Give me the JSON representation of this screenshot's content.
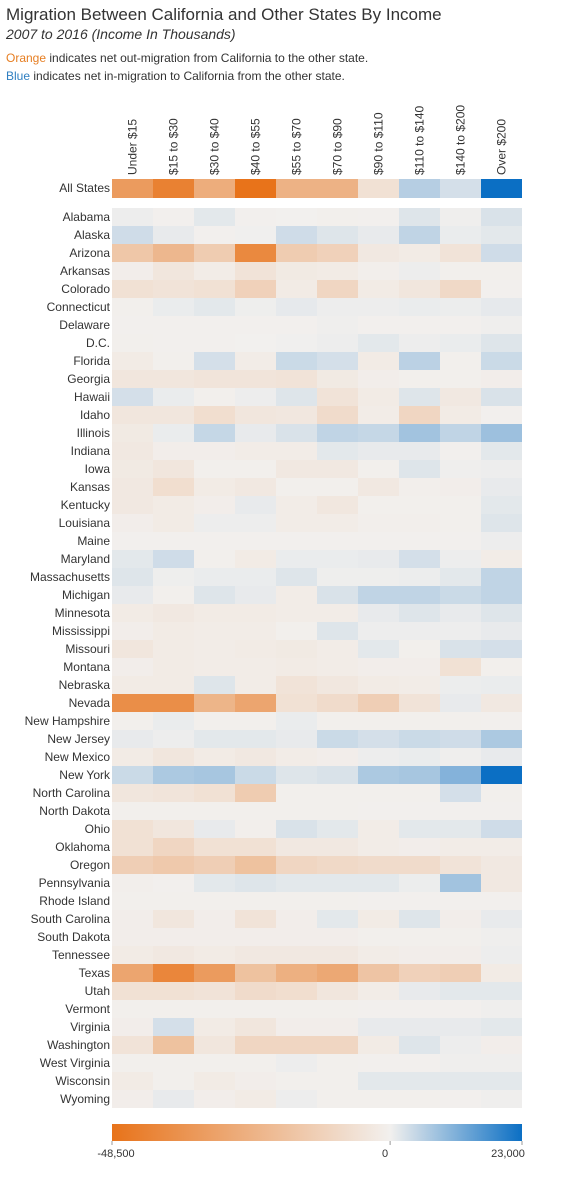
{
  "title": "Migration Between California and Other States By Income",
  "subtitle": "2007 to 2016 (Income In Thousands)",
  "notes": {
    "orange_word": "Orange",
    "orange_rest": " indicates net out-migration from California to the other state.",
    "blue_word": "Blue",
    "blue_rest": " indicates net in-migration to California from the other state."
  },
  "colors": {
    "orange": "#e8731a",
    "blue": "#0b6fc4",
    "neutral": "#f2f0ee",
    "orange_text": "#e67e22",
    "blue_text": "#2f7fc1"
  },
  "chart_data": {
    "type": "heatmap",
    "columns": [
      "Under $15",
      "$15 to $30",
      "$30 to $40",
      "$40 to $55",
      "$55 to $70",
      "$70 to $90",
      "$90 to $110",
      "$110 to $140",
      "$140 to $200",
      "Over $200"
    ],
    "summary_row": {
      "label": "All States",
      "values": [
        -33000,
        -43000,
        -26000,
        -48500,
        -24000,
        -24000,
        -6000,
        6000,
        3000,
        23000
      ]
    },
    "rows": [
      {
        "label": "Alabama",
        "values": [
          500,
          -300,
          1500,
          -300,
          0,
          -500,
          -300,
          2000,
          300,
          2500
        ]
      },
      {
        "label": "Alaska",
        "values": [
          3500,
          1000,
          -300,
          200,
          3500,
          2000,
          1000,
          5000,
          800,
          1500
        ]
      },
      {
        "label": "Arizona",
        "values": [
          -16000,
          -22000,
          -14000,
          -40000,
          -14000,
          -12000,
          -3000,
          -2000,
          -5000,
          3500
        ]
      },
      {
        "label": "Arkansas",
        "values": [
          -1000,
          -4000,
          -1500,
          -5000,
          -2500,
          -2000,
          -800,
          500,
          -500,
          -500
        ]
      },
      {
        "label": "Colorado",
        "values": [
          -6000,
          -5000,
          -6000,
          -12000,
          -2000,
          -10000,
          -2000,
          -4000,
          -9000,
          -300
        ]
      },
      {
        "label": "Connecticut",
        "values": [
          -500,
          800,
          1500,
          400,
          1200,
          500,
          500,
          800,
          600,
          1200
        ]
      },
      {
        "label": "Delaware",
        "values": [
          -300,
          -300,
          -200,
          -300,
          -200,
          300,
          -300,
          -200,
          -200,
          300
        ]
      },
      {
        "label": "D.C.",
        "values": [
          -500,
          -300,
          -200,
          0,
          200,
          500,
          1500,
          500,
          800,
          2000
        ]
      },
      {
        "label": "Florida",
        "values": [
          -2000,
          -500,
          3000,
          -1500,
          4000,
          3000,
          -2000,
          5500,
          -500,
          4000
        ]
      },
      {
        "label": "Georgia",
        "values": [
          -4000,
          -4000,
          -4500,
          -4500,
          -5000,
          -2500,
          -1000,
          -500,
          -500,
          -1000
        ]
      },
      {
        "label": "Hawaii",
        "values": [
          3000,
          800,
          -500,
          500,
          2000,
          -5000,
          -2000,
          2000,
          -3000,
          2500
        ]
      },
      {
        "label": "Idaho",
        "values": [
          -4000,
          -4000,
          -7000,
          -4000,
          -3500,
          -8000,
          -1500,
          -10000,
          -2000,
          -200
        ]
      },
      {
        "label": "Illinois",
        "values": [
          -2500,
          800,
          4500,
          1000,
          2500,
          5000,
          4500,
          8000,
          5000,
          8500
        ]
      },
      {
        "label": "Indiana",
        "values": [
          -3000,
          -1000,
          -1000,
          -1500,
          -1500,
          1500,
          1000,
          1000,
          -300,
          1500
        ]
      },
      {
        "label": "Iowa",
        "values": [
          -2500,
          -4000,
          -500,
          -500,
          -3000,
          -3000,
          -500,
          2000,
          300,
          500
        ]
      },
      {
        "label": "Kansas",
        "values": [
          -3000,
          -7000,
          -2000,
          -3000,
          -500,
          -500,
          -3000,
          -800,
          -1000,
          1000
        ]
      },
      {
        "label": "Kentucky",
        "values": [
          -3000,
          -2000,
          -1000,
          1000,
          -1500,
          -3500,
          -500,
          -500,
          -500,
          1500
        ]
      },
      {
        "label": "Louisiana",
        "values": [
          -1000,
          -2000,
          500,
          500,
          -1500,
          -1500,
          -800,
          -800,
          -500,
          2000
        ]
      },
      {
        "label": "Maine",
        "values": [
          -300,
          -300,
          -300,
          -300,
          -300,
          -300,
          -300,
          -300,
          -300,
          500
        ]
      },
      {
        "label": "Maryland",
        "values": [
          1500,
          3500,
          -500,
          -2000,
          800,
          800,
          1000,
          3000,
          500,
          -1500
        ]
      },
      {
        "label": "Massachusetts",
        "values": [
          2000,
          400,
          800,
          800,
          2000,
          400,
          400,
          600,
          1500,
          5000
        ]
      },
      {
        "label": "Michigan",
        "values": [
          1000,
          -500,
          2000,
          1000,
          -1500,
          2500,
          5000,
          5000,
          4000,
          5000
        ]
      },
      {
        "label": "Minnesota",
        "values": [
          -2000,
          -3000,
          -2000,
          -2000,
          -1500,
          -1500,
          1000,
          2000,
          1000,
          2000
        ]
      },
      {
        "label": "Mississippi",
        "values": [
          -1000,
          -2000,
          -1500,
          -1500,
          -500,
          2000,
          500,
          500,
          500,
          1000
        ]
      },
      {
        "label": "Missouri",
        "values": [
          -4000,
          -2000,
          -1500,
          -2000,
          -2500,
          -1500,
          1500,
          -500,
          2500,
          3000
        ]
      },
      {
        "label": "Montana",
        "values": [
          -1000,
          -2000,
          -1500,
          -1500,
          -2000,
          -1500,
          -1000,
          -1000,
          -6000,
          -500
        ]
      },
      {
        "label": "Nebraska",
        "values": [
          -2000,
          -2000,
          2000,
          -1500,
          -5000,
          -3500,
          -2000,
          -1500,
          600,
          800
        ]
      },
      {
        "label": "Nevada",
        "values": [
          -38000,
          -38000,
          -23000,
          -29000,
          -6000,
          -8000,
          -13000,
          -5000,
          1000,
          -3000
        ]
      },
      {
        "label": "New Hampshire",
        "values": [
          -500,
          800,
          -400,
          -400,
          800,
          -500,
          -500,
          -400,
          -400,
          -300
        ]
      },
      {
        "label": "New Jersey",
        "values": [
          1000,
          500,
          1500,
          1500,
          1000,
          4000,
          3000,
          4000,
          3500,
          7000
        ]
      },
      {
        "label": "New Mexico",
        "values": [
          -2000,
          -4000,
          -2000,
          -3000,
          -1500,
          -1000,
          500,
          800,
          300,
          1000
        ]
      },
      {
        "label": "New York",
        "values": [
          4000,
          7000,
          7500,
          4000,
          2000,
          2500,
          7000,
          7500,
          11000,
          23000
        ]
      },
      {
        "label": "North Carolina",
        "values": [
          -4000,
          -4500,
          -6000,
          -14000,
          -500,
          -500,
          -500,
          -500,
          3000,
          -500
        ]
      },
      {
        "label": "North Dakota",
        "values": [
          -500,
          -500,
          -500,
          -500,
          -500,
          -500,
          -300,
          -300,
          -300,
          -300
        ]
      },
      {
        "label": "Ohio",
        "values": [
          -6000,
          -4000,
          1000,
          -800,
          2500,
          1500,
          -1500,
          1500,
          1500,
          3500
        ]
      },
      {
        "label": "Oklahoma",
        "values": [
          -6000,
          -10000,
          -6000,
          -6000,
          -3000,
          -3000,
          -1500,
          -1000,
          -1500,
          -1500
        ]
      },
      {
        "label": "Oregon",
        "values": [
          -13000,
          -15000,
          -13000,
          -18000,
          -10000,
          -9000,
          -8000,
          -8000,
          -5000,
          -3000
        ]
      },
      {
        "label": "Pennsylvania",
        "values": [
          -800,
          -300,
          1500,
          2000,
          1500,
          1500,
          1500,
          600,
          8000,
          -3000
        ]
      },
      {
        "label": "Rhode Island",
        "values": [
          -500,
          -500,
          -500,
          -500,
          -500,
          -500,
          -300,
          -300,
          -300,
          -300
        ]
      },
      {
        "label": "South Carolina",
        "values": [
          -1000,
          -4000,
          -1000,
          -5000,
          -1000,
          1500,
          -2000,
          2000,
          -1000,
          1000
        ]
      },
      {
        "label": "South Dakota",
        "values": [
          -1000,
          -1000,
          -1000,
          -1000,
          -1000,
          -1000,
          -500,
          -500,
          -500,
          300
        ]
      },
      {
        "label": "Tennessee",
        "values": [
          -2000,
          -3000,
          -2000,
          -3000,
          -3000,
          -3000,
          -1500,
          -1000,
          -1000,
          500
        ]
      },
      {
        "label": "Texas",
        "values": [
          -29000,
          -41000,
          -33000,
          -18000,
          -25000,
          -28000,
          -17000,
          -12000,
          -13000,
          -2000
        ]
      },
      {
        "label": "Utah",
        "values": [
          -6000,
          -6000,
          -5000,
          -8000,
          -7000,
          -4000,
          -1500,
          1000,
          1500,
          1500
        ]
      },
      {
        "label": "Vermont",
        "values": [
          -500,
          -500,
          -500,
          -500,
          -500,
          -500,
          -300,
          -300,
          -300,
          300
        ]
      },
      {
        "label": "Virginia",
        "values": [
          -1000,
          3000,
          -2000,
          -4000,
          -1000,
          -1000,
          1000,
          1000,
          1000,
          1500
        ]
      },
      {
        "label": "Washington",
        "values": [
          -5000,
          -18000,
          -4000,
          -10000,
          -10000,
          -10000,
          -2000,
          2000,
          500,
          -1000
        ]
      },
      {
        "label": "West Virginia",
        "values": [
          -500,
          -500,
          -500,
          -500,
          500,
          -500,
          -300,
          -300,
          300,
          300
        ]
      },
      {
        "label": "Wisconsin",
        "values": [
          -2000,
          -500,
          -2000,
          -1000,
          -500,
          -500,
          1500,
          1500,
          1500,
          1500
        ]
      },
      {
        "label": "Wyoming",
        "values": [
          -1000,
          1000,
          -1000,
          -2000,
          500,
          -500,
          -500,
          -500,
          -300,
          300
        ]
      }
    ],
    "color_scale": {
      "min": -48500,
      "mid": 0,
      "max": 23000
    },
    "legend_ticks": [
      "-48,500",
      "0",
      "23,000"
    ]
  }
}
